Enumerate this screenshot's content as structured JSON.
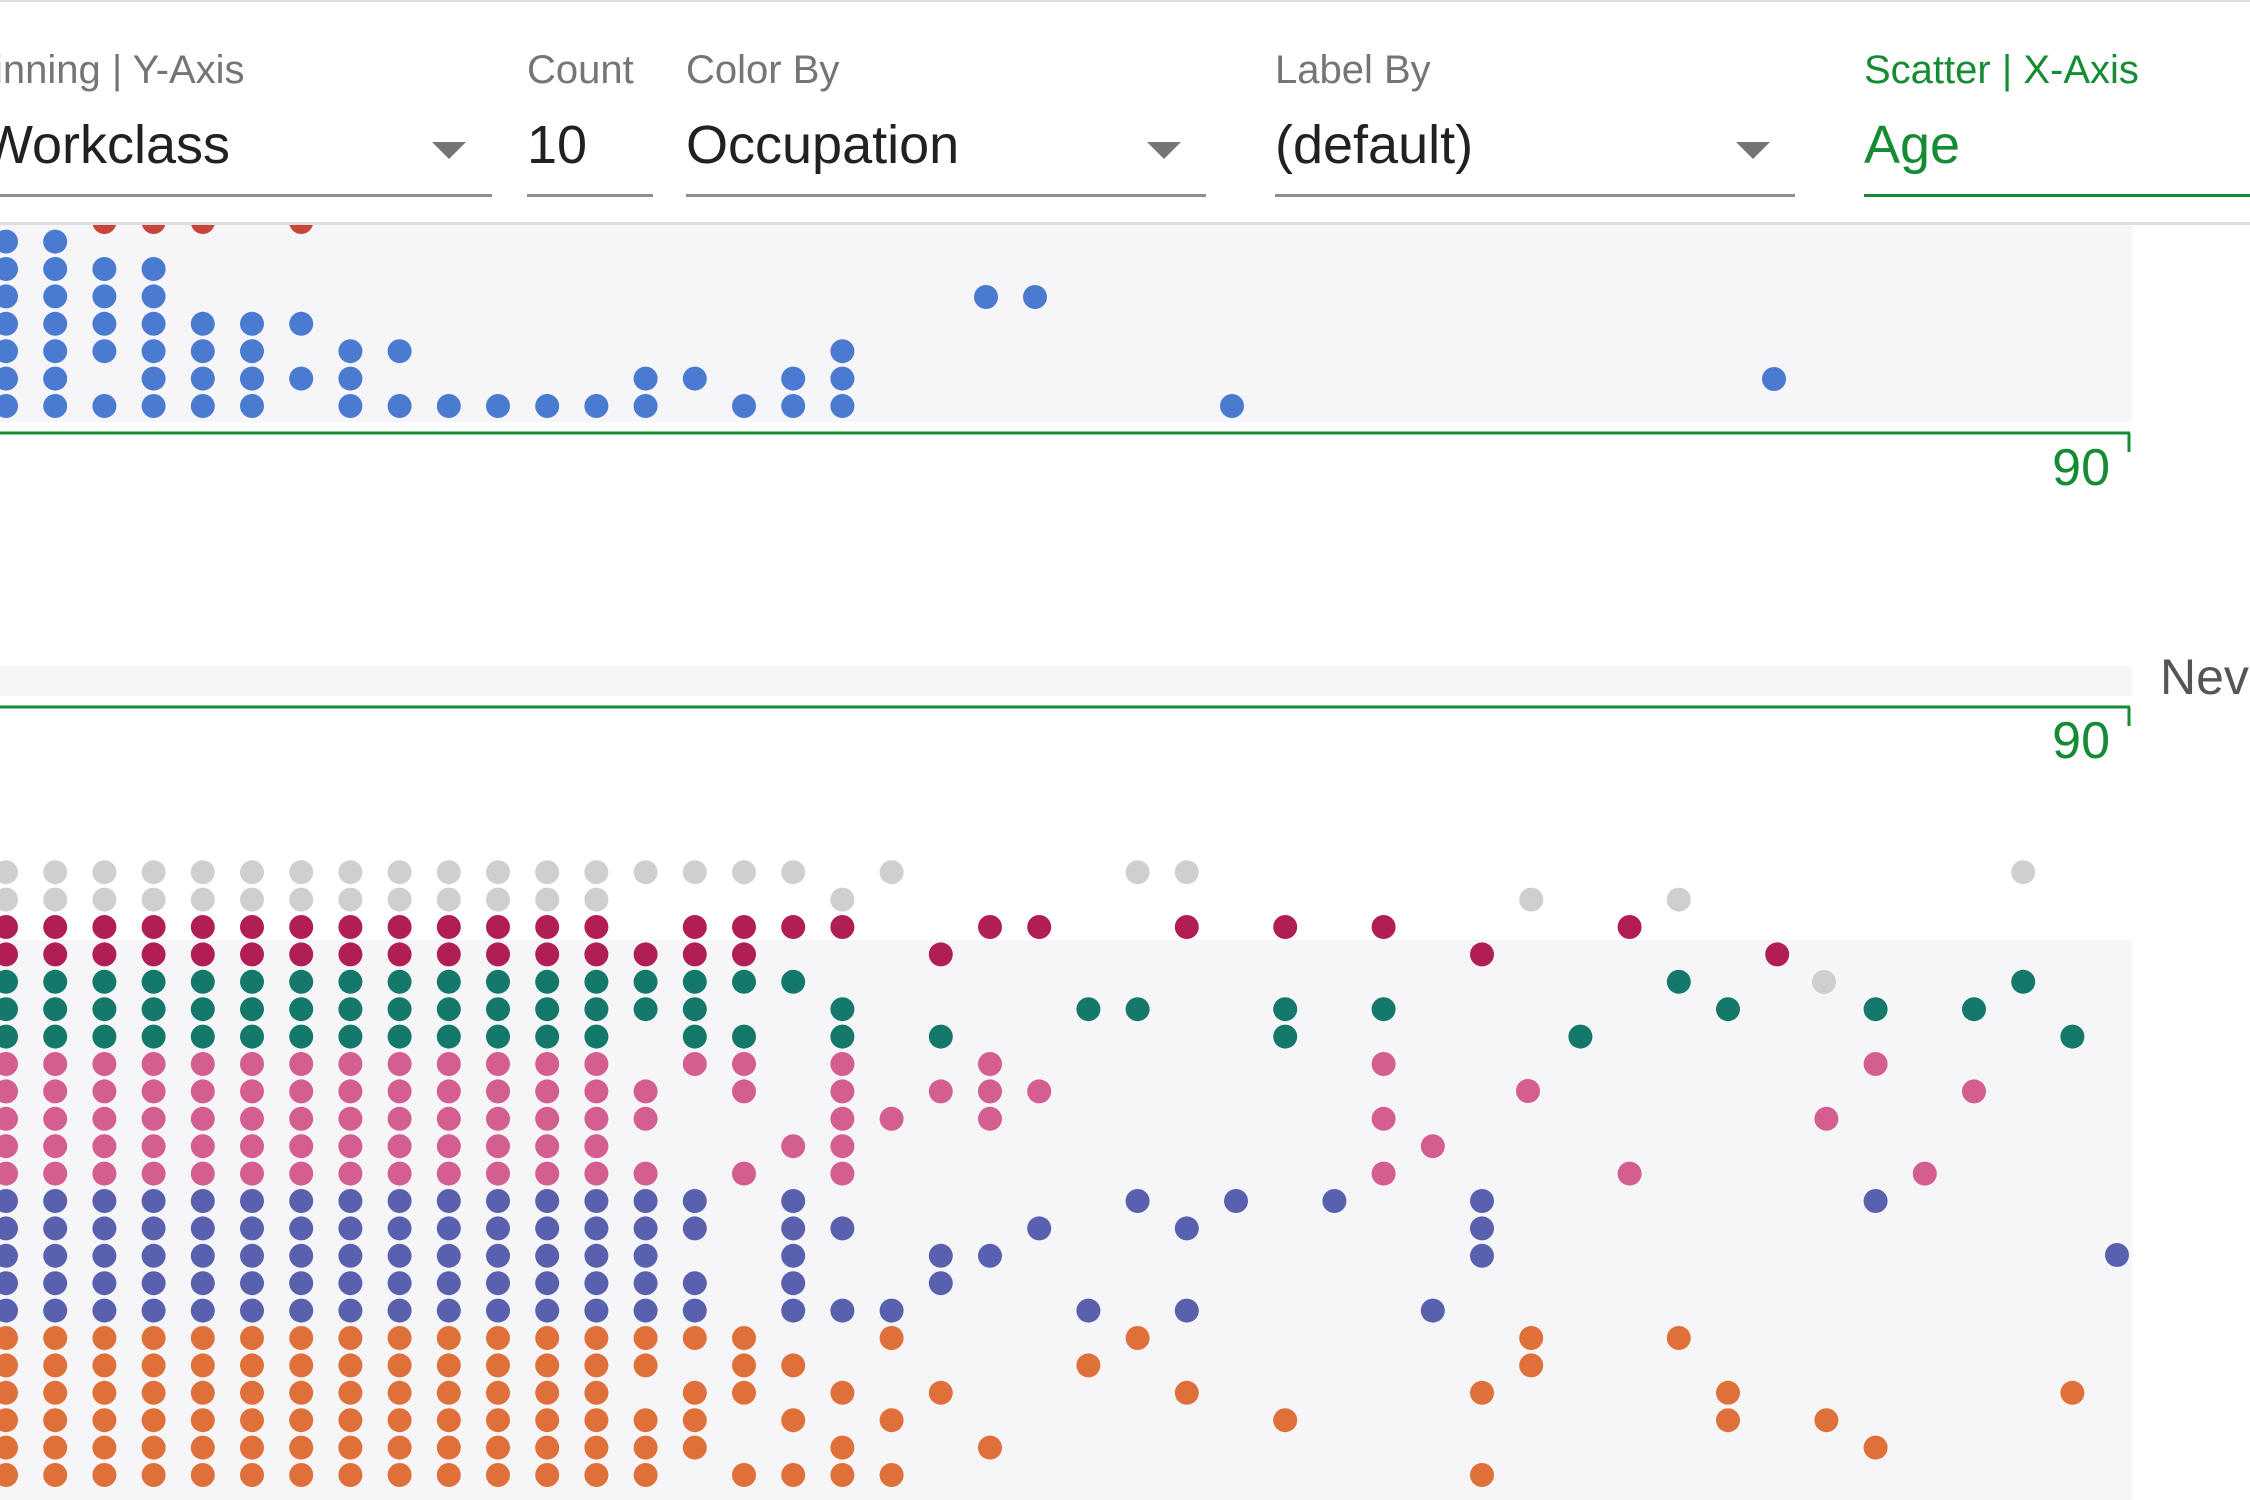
{
  "toolbar": {
    "binning": {
      "label": "inning | Y-Axis",
      "value": "Workclass"
    },
    "count": {
      "label": "Count",
      "value": "10"
    },
    "color_by": {
      "label": "Color By",
      "value": "Occupation"
    },
    "label_by": {
      "label": "Label By",
      "value": "(default)"
    },
    "scatter": {
      "label": "Scatter | X-Axis",
      "value": "Age"
    }
  },
  "facet_label": "Neve",
  "axis": {
    "end_label": "90",
    "color": "#158b34"
  },
  "colors": {
    "blue": "#4a7bd0",
    "red": "#c9443a",
    "grey": "#cfcfcf",
    "crimson": "#b11d55",
    "teal": "#14786a",
    "pink": "#d35e8f",
    "indigo": "#5960ad",
    "orange": "#e0703a",
    "cyan": "#1ba7a7",
    "panel": "#f6f6f9"
  }
}
